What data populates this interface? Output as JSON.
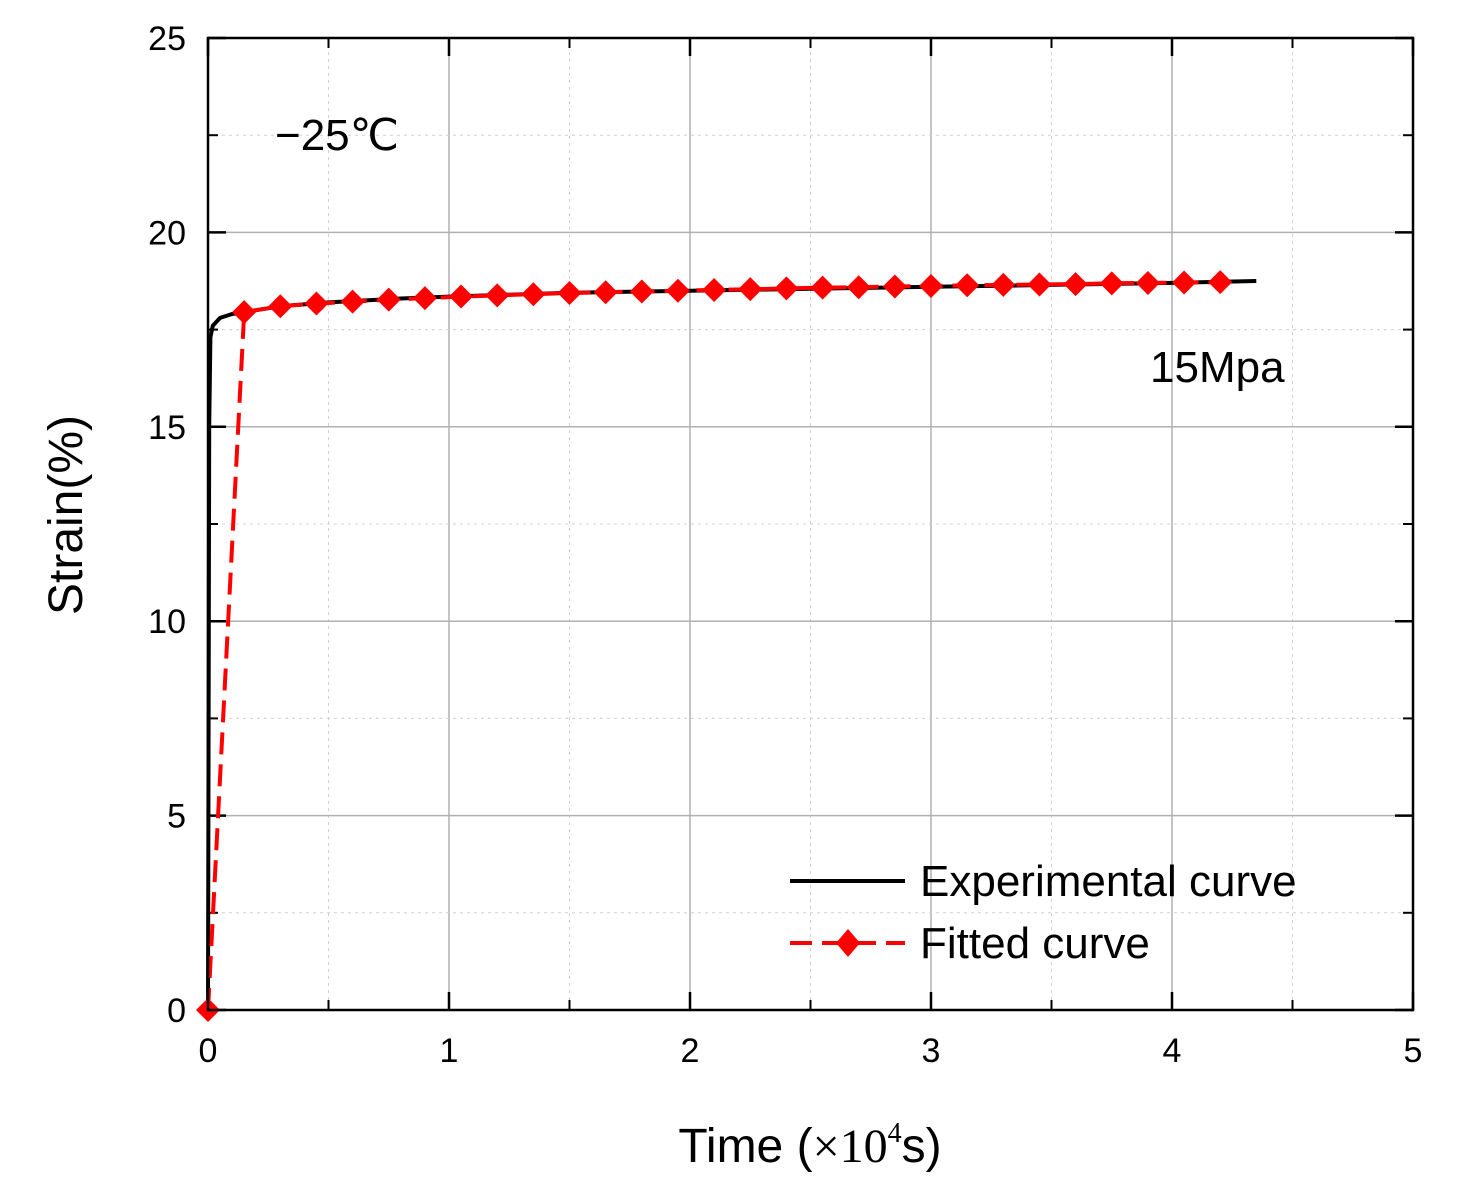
{
  "chart_data": {
    "type": "line",
    "title": "",
    "xlabel": {
      "main": "Time (",
      "times": "×10",
      "exp": "4",
      "unit": "s)"
    },
    "ylabel": "Strain(%)",
    "xlim": [
      0,
      5
    ],
    "ylim": [
      0,
      25
    ],
    "x_ticks": [
      "0",
      "1",
      "2",
      "3",
      "4",
      "5"
    ],
    "y_ticks": [
      "0",
      "5",
      "10",
      "15",
      "20",
      "25"
    ],
    "grid": true,
    "legend_position": "bottom-right",
    "annotations": [
      {
        "text": "−25℃",
        "location": "top-left"
      },
      {
        "text": "15Mpa",
        "location": "right"
      }
    ],
    "series": [
      {
        "name": "Experimental curve",
        "color": "#000000",
        "style": "solid",
        "x": [
          0,
          0.005,
          0.01,
          0.02,
          0.05,
          0.1,
          0.15,
          0.3,
          0.5,
          0.8,
          1.0,
          1.5,
          2.0,
          2.5,
          3.0,
          3.5,
          4.0,
          4.35
        ],
        "y": [
          0,
          15.0,
          17.3,
          17.6,
          17.8,
          17.9,
          17.95,
          18.1,
          18.2,
          18.3,
          18.35,
          18.45,
          18.5,
          18.55,
          18.6,
          18.65,
          18.7,
          18.75
        ]
      },
      {
        "name": "Fitted curve",
        "color": "#ff0000",
        "style": "dashed",
        "marker": "diamond",
        "x": [
          0.0,
          0.15,
          0.3,
          0.45,
          0.6,
          0.75,
          0.9,
          1.05,
          1.2,
          1.35,
          1.5,
          1.65,
          1.8,
          1.95,
          2.1,
          2.25,
          2.4,
          2.55,
          2.7,
          2.85,
          3.0,
          3.15,
          3.3,
          3.45,
          3.6,
          3.75,
          3.9,
          4.05,
          4.2
        ],
        "y": [
          0.0,
          17.95,
          18.1,
          18.17,
          18.22,
          18.27,
          18.31,
          18.35,
          18.38,
          18.41,
          18.44,
          18.46,
          18.48,
          18.5,
          18.52,
          18.54,
          18.56,
          18.58,
          18.59,
          18.61,
          18.62,
          18.64,
          18.65,
          18.66,
          18.67,
          18.69,
          18.7,
          18.71,
          18.72
        ]
      }
    ]
  }
}
